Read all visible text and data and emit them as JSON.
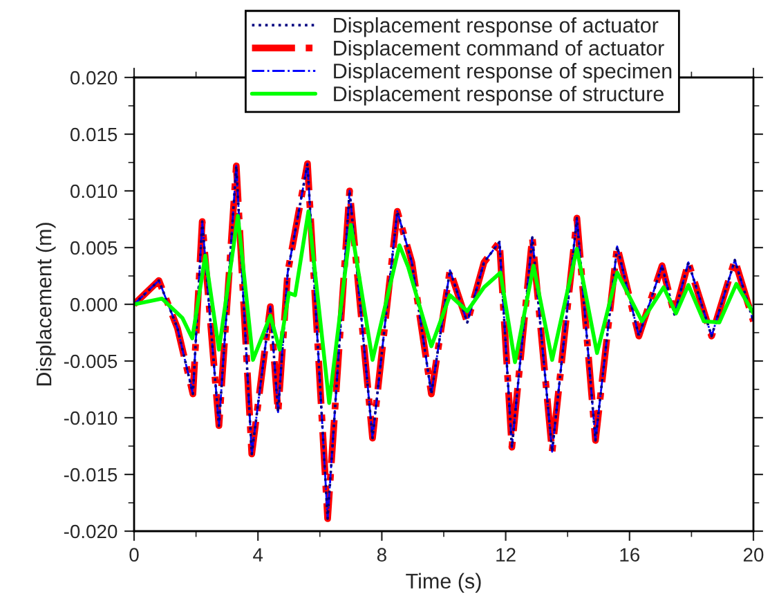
{
  "chart_data": {
    "type": "line",
    "xlabel": "Time (s)",
    "ylabel": "Displacement (m)",
    "xlim": [
      0,
      20
    ],
    "xticks": [
      0,
      4,
      8,
      12,
      16,
      20
    ],
    "ylim": [
      -0.02,
      0.02
    ],
    "yticks": [
      {
        "value": -0.02,
        "label": "-0.020"
      },
      {
        "value": -0.015,
        "label": "-0.015"
      },
      {
        "value": -0.01,
        "label": "-0.010"
      },
      {
        "value": -0.005,
        "label": "-0.005"
      },
      {
        "value": 0,
        "label": "0.000"
      },
      {
        "value": 0.005,
        "label": "0.005"
      },
      {
        "value": 0.01,
        "label": "0.010"
      },
      {
        "value": 0.015,
        "label": "0.015"
      },
      {
        "value": 0.02,
        "label": "0.020"
      }
    ],
    "legend": "top",
    "grid": false,
    "series": [
      {
        "name": "Displacement command of actuator",
        "color": "#ff0000",
        "line_style": "dashdot",
        "x": [
          0,
          0.8,
          1.4,
          1.9,
          2.2,
          2.74,
          3.3,
          3.8,
          4.4,
          4.65,
          4.96,
          5.6,
          6.25,
          6.96,
          7.7,
          8.5,
          8.97,
          9.6,
          10.2,
          10.76,
          11.3,
          11.8,
          12.2,
          12.86,
          13.5,
          14.3,
          14.9,
          15.6,
          16.3,
          17.05,
          17.45,
          17.9,
          18.65,
          19.4,
          20
        ],
        "values": [
          0,
          0.0021,
          -0.0021,
          -0.0079,
          0.0073,
          -0.0107,
          0.0122,
          -0.0132,
          -0.0002,
          -0.0095,
          0.0028,
          0.0124,
          -0.0189,
          0.01,
          -0.0118,
          0.0082,
          0.0037,
          -0.0079,
          0.003,
          -0.0016,
          0.0037,
          0.0055,
          -0.0126,
          0.0059,
          -0.013,
          0.0076,
          -0.012,
          0.0051,
          -0.0028,
          0.0034,
          -0.0009,
          0.0037,
          -0.0028,
          0.0039,
          -0.0015
        ]
      },
      {
        "name": "Displacement response of specimen",
        "color": "#0000ff",
        "line_style": "dashdot",
        "x": [
          0,
          0.8,
          1.4,
          1.9,
          2.2,
          2.74,
          3.3,
          3.8,
          4.4,
          4.65,
          4.96,
          5.6,
          6.25,
          6.96,
          7.7,
          8.5,
          8.97,
          9.6,
          10.2,
          10.76,
          11.3,
          11.8,
          12.2,
          12.86,
          13.5,
          14.3,
          14.9,
          15.6,
          16.3,
          17.05,
          17.45,
          17.9,
          18.65,
          19.4,
          20
        ],
        "values": [
          0,
          0.0021,
          -0.0021,
          -0.0079,
          0.0073,
          -0.0107,
          0.0122,
          -0.0132,
          -0.0002,
          -0.0095,
          0.0028,
          0.0124,
          -0.0189,
          0.01,
          -0.0118,
          0.0082,
          0.0037,
          -0.0079,
          0.003,
          -0.0016,
          0.0037,
          0.0055,
          -0.0126,
          0.0059,
          -0.013,
          0.0076,
          -0.012,
          0.0051,
          -0.0028,
          0.0034,
          -0.0009,
          0.0037,
          -0.0028,
          0.0039,
          -0.0015
        ]
      },
      {
        "name": "Displacement response of actuator",
        "color": "#000080",
        "line_style": "dotted",
        "x": [
          0,
          0.8,
          1.4,
          1.9,
          2.2,
          2.74,
          3.3,
          3.8,
          4.4,
          4.65,
          4.96,
          5.6,
          6.25,
          6.96,
          7.7,
          8.5,
          8.97,
          9.6,
          10.2,
          10.76,
          11.3,
          11.8,
          12.2,
          12.86,
          13.5,
          14.3,
          14.9,
          15.6,
          16.3,
          17.05,
          17.45,
          17.9,
          18.65,
          19.4,
          20
        ],
        "values": [
          0,
          0.0021,
          -0.0021,
          -0.0079,
          0.0073,
          -0.0107,
          0.0122,
          -0.0132,
          -0.0002,
          -0.0095,
          0.0028,
          0.0124,
          -0.0189,
          0.01,
          -0.0118,
          0.0082,
          0.0037,
          -0.0079,
          0.003,
          -0.0016,
          0.0037,
          0.0055,
          -0.0126,
          0.0059,
          -0.013,
          0.0076,
          -0.012,
          0.0051,
          -0.0028,
          0.0034,
          -0.0009,
          0.0037,
          -0.0028,
          0.0039,
          -0.0015
        ]
      },
      {
        "name": "Displacement response of structure",
        "color": "#00ff00",
        "line_style": "solid",
        "x": [
          0,
          0.9,
          1.56,
          1.88,
          2.3,
          2.74,
          3.35,
          3.84,
          4.4,
          4.7,
          5.0,
          5.2,
          5.63,
          6.3,
          7.0,
          7.7,
          8.57,
          8.85,
          9.6,
          10.2,
          10.76,
          11.3,
          11.83,
          12.3,
          12.9,
          13.5,
          14.3,
          14.95,
          15.6,
          16.4,
          17.1,
          17.5,
          17.9,
          18.4,
          18.9,
          19.45,
          20
        ],
        "values": [
          0,
          0.0005,
          -0.0012,
          -0.003,
          0.0043,
          -0.004,
          0.0078,
          -0.0049,
          -0.001,
          -0.004,
          0.001,
          0.0008,
          0.0082,
          -0.0087,
          0.007,
          -0.0049,
          0.0052,
          0.0033,
          -0.0037,
          0.0008,
          -0.0006,
          0.0015,
          0.0028,
          -0.0051,
          0.0034,
          -0.0049,
          0.0049,
          -0.0043,
          0.0028,
          -0.0015,
          0.0015,
          -0.0008,
          0.0017,
          -0.0015,
          -0.0016,
          0.0018,
          -0.0008
        ]
      }
    ]
  }
}
